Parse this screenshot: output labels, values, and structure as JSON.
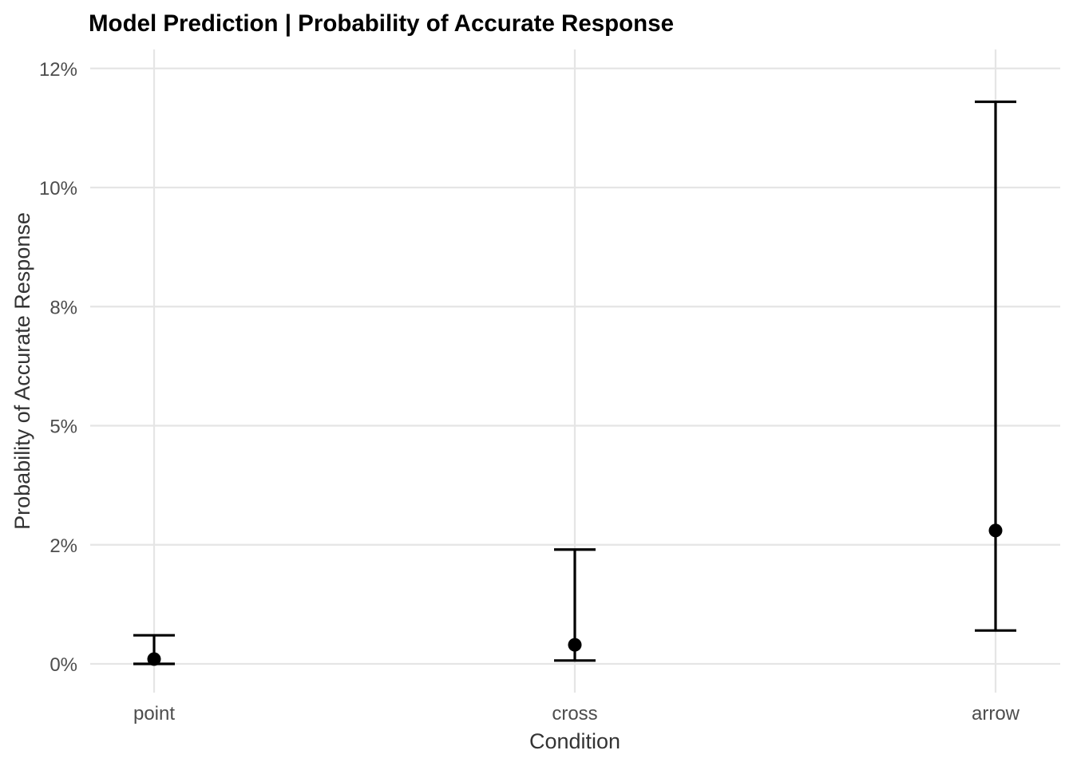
{
  "chart_data": {
    "type": "scatter",
    "title": "Model Prediction | Probability of Accurate Response",
    "xlabel": "Condition",
    "ylabel": "Probability of Accurate Response",
    "categories": [
      "point",
      "cross",
      "arrow"
    ],
    "estimate": [
      0.1,
      0.4,
      2.8
    ],
    "lower": [
      0.0,
      0.07,
      0.7
    ],
    "upper": [
      0.6,
      2.4,
      11.8
    ],
    "y_ticks": [
      0,
      2.5,
      5,
      7.5,
      10,
      12.5
    ],
    "y_tick_labels": [
      "0%",
      "2%",
      "5%",
      "8%",
      "10%",
      "12%"
    ],
    "ylim": [
      -0.6,
      12.9
    ],
    "grid": true,
    "legend": "none",
    "colors": {
      "marks": "#000000",
      "grid": "#e5e5e5",
      "tick_text": "#4d4d4d",
      "axis_title": "#333333"
    }
  }
}
